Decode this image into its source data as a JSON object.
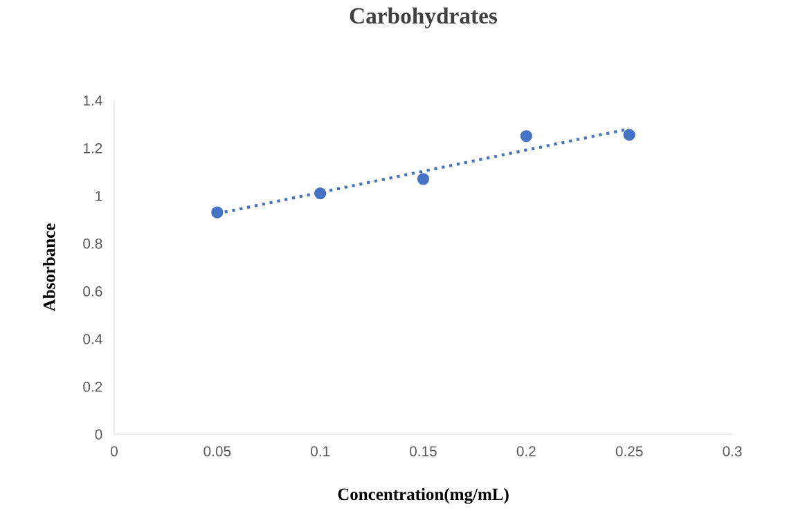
{
  "chart_data": {
    "type": "scatter",
    "title": "Carbohydrates",
    "xlabel": "Concentration(mg/mL)",
    "ylabel": "Absorbance",
    "xlim": [
      0,
      0.3
    ],
    "xticks": [
      0,
      0.05,
      0.1,
      0.15,
      0.2,
      0.25,
      0.3
    ],
    "ylim": [
      0,
      1.4
    ],
    "yticks": [
      0,
      0.2,
      0.4,
      0.6,
      0.8,
      1,
      1.2,
      1.4
    ],
    "grid": false,
    "legend": false,
    "series": [
      {
        "marker": "circle",
        "color": "#4472c4",
        "x": [
          0.05,
          0.1,
          0.15,
          0.2,
          0.25
        ],
        "values": [
          0.93,
          1.01,
          1.07,
          1.25,
          1.255
        ]
      },
      {
        "type": "line",
        "color": "#4472c4",
        "line_style": "dotted",
        "marker": "none",
        "x": [
          0.05,
          0.25
        ],
        "values": [
          0.925,
          1.28
        ]
      }
    ]
  }
}
